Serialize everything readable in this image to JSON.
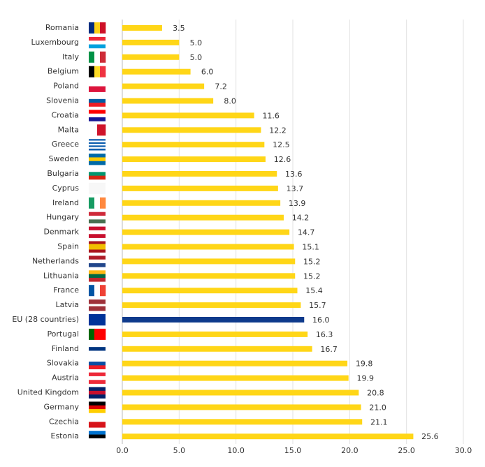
{
  "chart_data": {
    "type": "hbar",
    "categories": [
      "Romania",
      "Luxembourg",
      "Italy",
      "Belgium",
      "Poland",
      "Slovenia",
      "Croatia",
      "Malta",
      "Greece",
      "Sweden",
      "Bulgaria",
      "Cyprus",
      "Ireland",
      "Hungary",
      "Denmark",
      "Spain",
      "Netherlands",
      "Lithuania",
      "France",
      "Latvia",
      "EU (28 countries)",
      "Portugal",
      "Finland",
      "Slovakia",
      "Austria",
      "United Kingdom",
      "Germany",
      "Czechia",
      "Estonia"
    ],
    "values": [
      3.5,
      5,
      5,
      6,
      7.2,
      8,
      11.6,
      12.2,
      12.5,
      12.6,
      13.6,
      13.7,
      13.9,
      14.2,
      14.7,
      15.1,
      15.2,
      15.2,
      15.4,
      15.7,
      16,
      16.3,
      16.7,
      19.8,
      19.9,
      20.8,
      21,
      21.1,
      25.6
    ],
    "value_labels": [
      "3.5",
      "5.0",
      "5.0",
      "6.0",
      "7.2",
      "8.0",
      "11.6",
      "12.2",
      "12.5",
      "12.6",
      "13.6",
      "13.7",
      "13.9",
      "14.2",
      "14.7",
      "15.1",
      "15.2",
      "15.2",
      "15.4",
      "15.7",
      "16.0",
      "16.3",
      "16.7",
      "19.8",
      "19.9",
      "20.8",
      "21.0",
      "21.1",
      "25.6"
    ],
    "colors": [
      "#ffd617",
      "#ffd617",
      "#ffd617",
      "#ffd617",
      "#ffd617",
      "#ffd617",
      "#ffd617",
      "#ffd617",
      "#ffd617",
      "#ffd617",
      "#ffd617",
      "#ffd617",
      "#ffd617",
      "#ffd617",
      "#ffd617",
      "#ffd617",
      "#ffd617",
      "#ffd617",
      "#ffd617",
      "#ffd617",
      "#0e3a8c",
      "#ffd617",
      "#ffd617",
      "#ffd617",
      "#ffd617",
      "#ffd617",
      "#ffd617",
      "#ffd617",
      "#ffd617"
    ],
    "xlim": [
      0,
      30
    ],
    "xticks": [
      {
        "value": 0,
        "label": "0.0"
      },
      {
        "value": 5,
        "label": "5.0"
      },
      {
        "value": 10,
        "label": "10.0"
      },
      {
        "value": 15,
        "label": "15.0"
      },
      {
        "value": 20,
        "label": "20.0"
      },
      {
        "value": 25,
        "label": "25.0"
      },
      {
        "value": 30,
        "label": "30.0"
      }
    ],
    "grid": true
  }
}
